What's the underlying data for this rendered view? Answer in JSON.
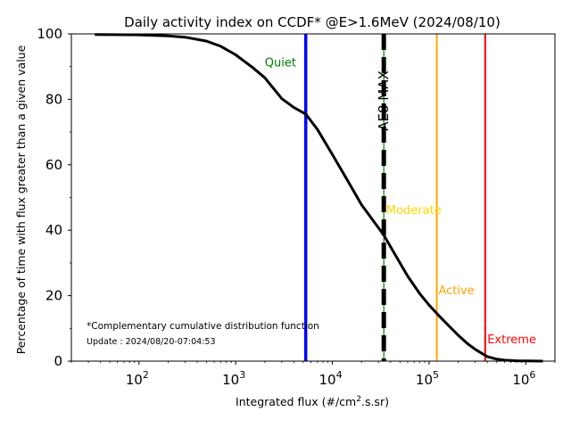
{
  "chart_data": {
    "type": "line",
    "title": "Daily activity index on CCDF* @E>1.6MeV (2024/08/10)",
    "xlabel_main": "Integrated flux (#/cm",
    "xlabel_sup": "2",
    "xlabel_tail": ".s.sr)",
    "ylabel": "Percentage of time with flux greater than a given value",
    "x_scale": "log",
    "xlim": [
      20,
      2000000
    ],
    "ylim": [
      0,
      100
    ],
    "y_ticks": [
      "0",
      "20",
      "40",
      "60",
      "80",
      "100"
    ],
    "x_ticks": [
      {
        "base": "10",
        "exp": "2",
        "value": 100
      },
      {
        "base": "10",
        "exp": "3",
        "value": 1000
      },
      {
        "base": "10",
        "exp": "4",
        "value": 10000
      },
      {
        "base": "10",
        "exp": "5",
        "value": 100000
      },
      {
        "base": "10",
        "exp": "6",
        "value": 1000000
      }
    ],
    "grid": false,
    "ccdf": {
      "color": "#000000",
      "x": [
        35,
        100,
        200,
        300,
        500,
        700,
        1000,
        1500,
        2000,
        3000,
        4000,
        5300,
        7000,
        10000,
        15000,
        20000,
        25000,
        34000,
        45000,
        60000,
        80000,
        100000,
        125000,
        160000,
        200000,
        250000,
        300000,
        350000,
        400000,
        500000,
        600000,
        800000,
        1000000,
        1500000
      ],
      "y": [
        99.8,
        99.7,
        99.4,
        99.0,
        97.8,
        96.2,
        93.6,
        89.7,
        86.6,
        80.2,
        77.5,
        75.5,
        70.8,
        63.1,
        54.2,
        47.8,
        43.9,
        38.5,
        32.3,
        26.0,
        20.6,
        17.1,
        14.0,
        10.8,
        7.9,
        5.3,
        3.6,
        2.4,
        1.4,
        0.6,
        0.3,
        0.1,
        0.05,
        0.0
      ]
    },
    "thresholds": [
      {
        "name": "Quiet",
        "value": 5300,
        "color": "#0000ff",
        "label_color": "#008000",
        "label_x": 2000,
        "label_y": 90
      },
      {
        "name": "Moderate",
        "value": 120000,
        "color": "#ffa500",
        "label_color": "#ffd700",
        "label_x": 36000,
        "label_y": 45
      },
      {
        "name": "Active",
        "value": 120000,
        "color": "#ffa500",
        "label_color": "#ffa500",
        "label_x": 125000,
        "label_y": 20.5
      },
      {
        "name": "Extreme",
        "value": 380000,
        "color": "#ff0000",
        "label_color": "#ff0000",
        "label_x": 400000,
        "label_y": 5.5
      }
    ],
    "ae8_max": {
      "label": "AE8 MAX",
      "value": 34000,
      "color": "#000000",
      "inner_color": "#008000"
    },
    "annotations": {
      "footnote": "*Complementary cumulative distribution function",
      "update": "Update : 2024/08/20-07:04:53"
    }
  }
}
